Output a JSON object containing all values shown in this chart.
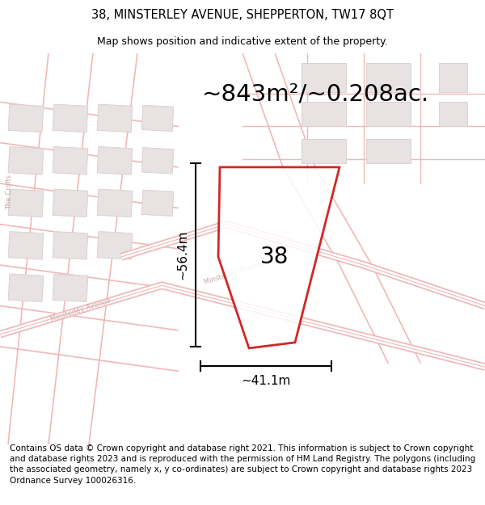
{
  "title_line1": "38, MINSTERLEY AVENUE, SHEPPERTON, TW17 8QT",
  "title_line2": "Map shows position and indicative extent of the property.",
  "area_text": "~843m²/~0.208ac.",
  "dim_vertical": "~56.4m",
  "dim_horizontal": "~41.1m",
  "label_38": "38",
  "footer_text": "Contains OS data © Crown copyright and database right 2021. This information is subject to Crown copyright and database rights 2023 and is reproduced with the permission of HM Land Registry. The polygons (including the associated geometry, namely x, y co-ordinates) are subject to Crown copyright and database rights 2023 Ordnance Survey 100026316.",
  "map_bg": "#faf7f7",
  "road_color": "#f0b8b8",
  "road_fill": "#ffffff",
  "building_color": "#e8e2e2",
  "building_edge": "#ddd0d0",
  "plot_edge_color": "#cc0000",
  "title_fontsize": 10.5,
  "subtitle_fontsize": 9,
  "area_fontsize": 21,
  "dim_fontsize": 11,
  "label_fontsize": 20,
  "footer_fontsize": 7.5,
  "road_label_color": "#c8a8a8",
  "road_label_size": 6.0
}
